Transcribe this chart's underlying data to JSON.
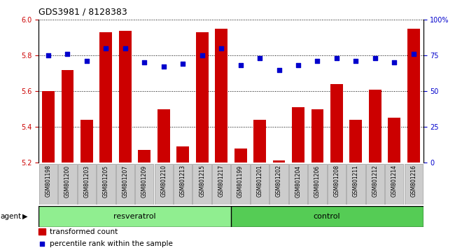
{
  "title": "GDS3981 / 8128383",
  "samples": [
    "GSM801198",
    "GSM801200",
    "GSM801203",
    "GSM801205",
    "GSM801207",
    "GSM801209",
    "GSM801210",
    "GSM801213",
    "GSM801215",
    "GSM801217",
    "GSM801199",
    "GSM801201",
    "GSM801202",
    "GSM801204",
    "GSM801206",
    "GSM801208",
    "GSM801211",
    "GSM801212",
    "GSM801214",
    "GSM801216"
  ],
  "bar_values": [
    5.6,
    5.72,
    5.44,
    5.93,
    5.94,
    5.27,
    5.5,
    5.29,
    5.93,
    5.95,
    5.28,
    5.44,
    5.21,
    5.51,
    5.5,
    5.64,
    5.44,
    5.61,
    5.45,
    5.95
  ],
  "percentile_values": [
    75,
    76,
    71,
    80,
    80,
    70,
    67,
    69,
    75,
    80,
    68,
    73,
    65,
    68,
    71,
    73,
    71,
    73,
    70,
    76
  ],
  "resveratrol_count": 10,
  "control_count": 10,
  "ylim_left": [
    5.2,
    6.0
  ],
  "ylim_right": [
    0,
    100
  ],
  "yticks_left": [
    5.2,
    5.4,
    5.6,
    5.8,
    6.0
  ],
  "yticks_right": [
    0,
    25,
    50,
    75,
    100
  ],
  "bar_color": "#cc0000",
  "dot_color": "#0000cc",
  "resveratrol_color": "#90ee90",
  "control_color": "#55cc55",
  "bar_color_legend": "#cc0000",
  "tick_label_color": "#cc0000",
  "right_tick_color": "#0000cc",
  "legend_bar_label": "transformed count",
  "legend_dot_label": "percentile rank within the sample",
  "xlabel_agent": "agent",
  "label_resveratrol": "resveratrol",
  "label_control": "control",
  "title_fontsize": 9,
  "axis_fontsize": 7,
  "legend_fontsize": 7.5
}
